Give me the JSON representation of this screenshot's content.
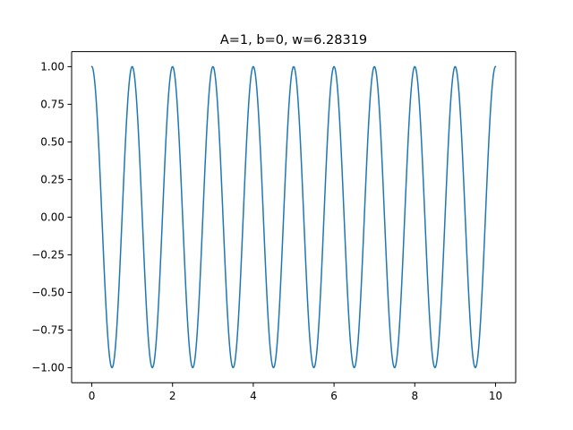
{
  "chart_data": {
    "type": "line",
    "title": "A=1, b=0, w=6.28319",
    "xlabel": "",
    "ylabel": "",
    "xlim": [
      -0.5,
      10.5
    ],
    "ylim": [
      -1.1,
      1.1
    ],
    "xticks": [
      0,
      2,
      4,
      6,
      8,
      10
    ],
    "xtick_labels": [
      "0",
      "2",
      "4",
      "6",
      "8",
      "10"
    ],
    "yticks": [
      -1.0,
      -0.75,
      -0.5,
      -0.25,
      0.0,
      0.25,
      0.5,
      0.75,
      1.0
    ],
    "ytick_labels": [
      "−1.00",
      "−0.75",
      "−0.50",
      "−0.25",
      "0.00",
      "0.25",
      "0.50",
      "0.75",
      "1.00"
    ],
    "grid": false,
    "legend": "none",
    "series": [
      {
        "color": "#1f77b4",
        "function": "y = cos(w*x)",
        "params": {
          "A": 1,
          "b": 0,
          "w": 6.28319
        },
        "x_range": [
          0,
          10
        ],
        "sample_points": [
          [
            0,
            1.0
          ],
          [
            0.5,
            -1.0
          ],
          [
            1,
            1.0
          ],
          [
            1.5,
            -1.0
          ],
          [
            2,
            1.0
          ],
          [
            2.5,
            -1.0
          ],
          [
            3,
            1.0
          ],
          [
            3.5,
            -1.0
          ],
          [
            4,
            1.0
          ],
          [
            4.5,
            -1.0
          ],
          [
            5,
            1.0
          ],
          [
            5.5,
            -1.0
          ],
          [
            6,
            1.0
          ],
          [
            6.5,
            -1.0
          ],
          [
            7,
            1.0
          ],
          [
            7.5,
            -1.0
          ],
          [
            8,
            1.0
          ],
          [
            8.5,
            -1.0
          ],
          [
            9,
            1.0
          ],
          [
            9.5,
            -1.0
          ],
          [
            10,
            1.0
          ]
        ]
      }
    ]
  }
}
